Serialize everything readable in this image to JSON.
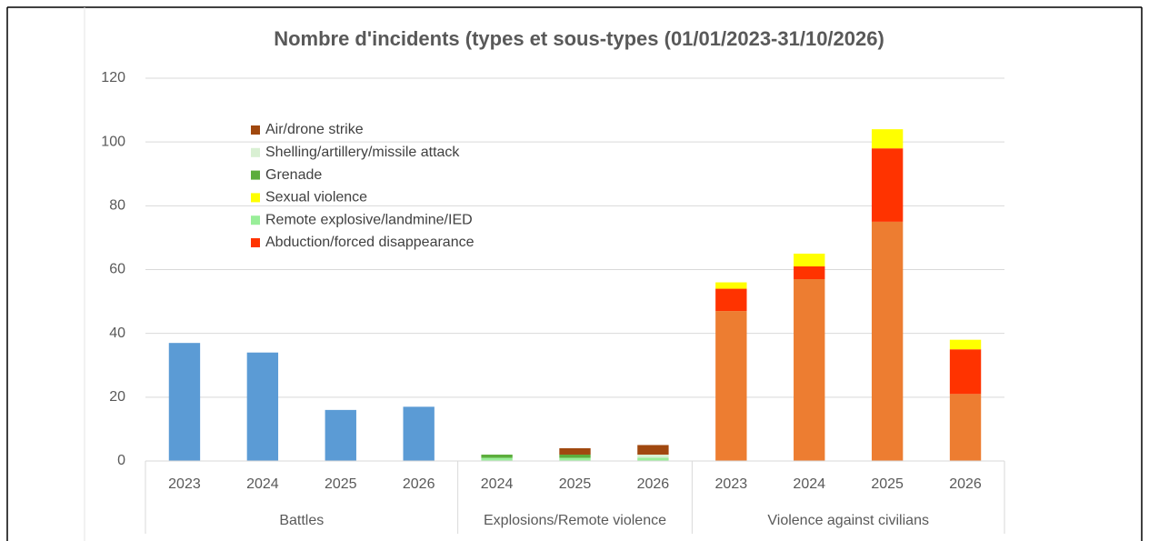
{
  "chart_data": {
    "type": "bar",
    "stacked": true,
    "title": "Nombre d'incidents (types et sous-types (01/01/2023-31/10/2026)",
    "groups": [
      {
        "label": "Battles",
        "categories": [
          "2023",
          "2024",
          "2025",
          "2026"
        ]
      },
      {
        "label": "Explosions/Remote violence",
        "categories": [
          "2024",
          "2025",
          "2026"
        ]
      },
      {
        "label": "Violence against civilians",
        "categories": [
          "2023",
          "2024",
          "2025",
          "2026"
        ]
      }
    ],
    "series": [
      {
        "color": "#5b9bd5",
        "values": [
          37,
          34,
          16,
          17,
          null,
          null,
          null,
          null,
          null,
          null,
          null
        ]
      },
      {
        "color": "#ed7d31",
        "values": [
          null,
          null,
          null,
          null,
          null,
          null,
          null,
          47,
          57,
          75,
          21
        ]
      },
      {
        "name": "Abduction/forced disappearance",
        "color": "#ff3300",
        "values": [
          null,
          null,
          null,
          null,
          null,
          null,
          null,
          7,
          4,
          23,
          14
        ]
      },
      {
        "name": "Remote explosive/landmine/IED",
        "color": "#99ee99",
        "values": [
          null,
          null,
          null,
          null,
          1,
          1,
          1,
          null,
          null,
          null,
          null
        ]
      },
      {
        "name": "Sexual violence",
        "color": "#ffff00",
        "values": [
          null,
          null,
          null,
          null,
          null,
          null,
          null,
          2,
          4,
          6,
          3
        ]
      },
      {
        "name": "Grenade",
        "color": "#5cad3c",
        "values": [
          null,
          null,
          null,
          null,
          1,
          1,
          null,
          null,
          null,
          null,
          null
        ]
      },
      {
        "name": "Shelling/artillery/missile attack",
        "color": "#d9f0d3",
        "values": [
          null,
          null,
          null,
          null,
          null,
          null,
          1,
          null,
          null,
          null,
          null
        ]
      },
      {
        "name": "Air/drone strike",
        "color": "#a0480f",
        "values": [
          null,
          null,
          null,
          null,
          null,
          2,
          3,
          null,
          null,
          null,
          null
        ]
      }
    ],
    "ylim": [
      0,
      120
    ],
    "yticks": [
      0,
      20,
      40,
      60,
      80,
      100,
      120
    ],
    "grid": true,
    "legend": "upper left"
  }
}
